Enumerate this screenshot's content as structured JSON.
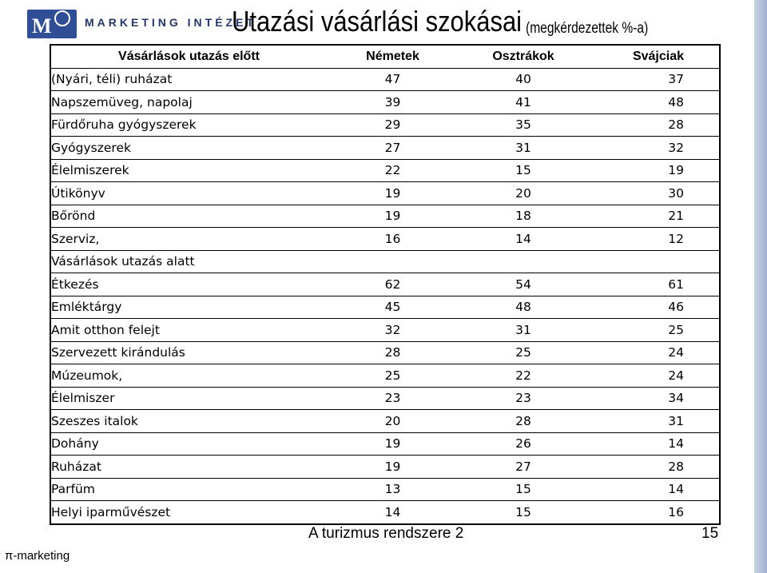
{
  "logo": {
    "mark": "M",
    "text": "MARKETING INTÉZET"
  },
  "slide": {
    "title": "Utazási vásárlási szokásai",
    "subtitle": "(megkérdezettek %-a)"
  },
  "table": {
    "headers": [
      "Vásárlások utazás előtt",
      "Németek",
      "Osztrákok",
      "Svájciak"
    ],
    "rows": [
      [
        "(Nyári, téli) ruházat",
        "47",
        "40",
        "37"
      ],
      [
        "Napszemüveg, napolaj",
        "39",
        "41",
        "48"
      ],
      [
        "Fürdőruha gyógyszerek",
        "29",
        "35",
        "28"
      ],
      [
        "Gyógyszerek",
        "27",
        "31",
        "32"
      ],
      [
        "Élelmiszerek",
        "22",
        "15",
        "19"
      ],
      [
        "Útikönyv",
        "19",
        "20",
        "30"
      ],
      [
        "Bőrönd",
        "19",
        "18",
        "21"
      ],
      [
        "Szerviz,",
        "16",
        "14",
        "12"
      ],
      [
        "Vásárlások utazás alatt",
        "",
        "",
        ""
      ],
      [
        "Étkezés",
        "62",
        "54",
        "61"
      ],
      [
        "Emléktárgy",
        "45",
        "48",
        "46"
      ],
      [
        "Amit otthon felejt",
        "32",
        "31",
        "25"
      ],
      [
        "Szervezett kirándulás",
        "28",
        "25",
        "24"
      ],
      [
        "Múzeumok,",
        "25",
        "22",
        "24"
      ],
      [
        "Élelmiszer",
        "23",
        "23",
        "34"
      ],
      [
        "Szeszes italok",
        "20",
        "28",
        "31"
      ],
      [
        "Dohány",
        "19",
        "26",
        "14"
      ],
      [
        "Ruházat",
        "19",
        "27",
        "28"
      ],
      [
        "Parfüm",
        "13",
        "15",
        "14"
      ],
      [
        "Helyi iparművészet",
        "14",
        "15",
        "16"
      ]
    ]
  },
  "footer": {
    "center": "A turizmus rendszere 2",
    "page": "15",
    "brand": "π-marketing"
  }
}
